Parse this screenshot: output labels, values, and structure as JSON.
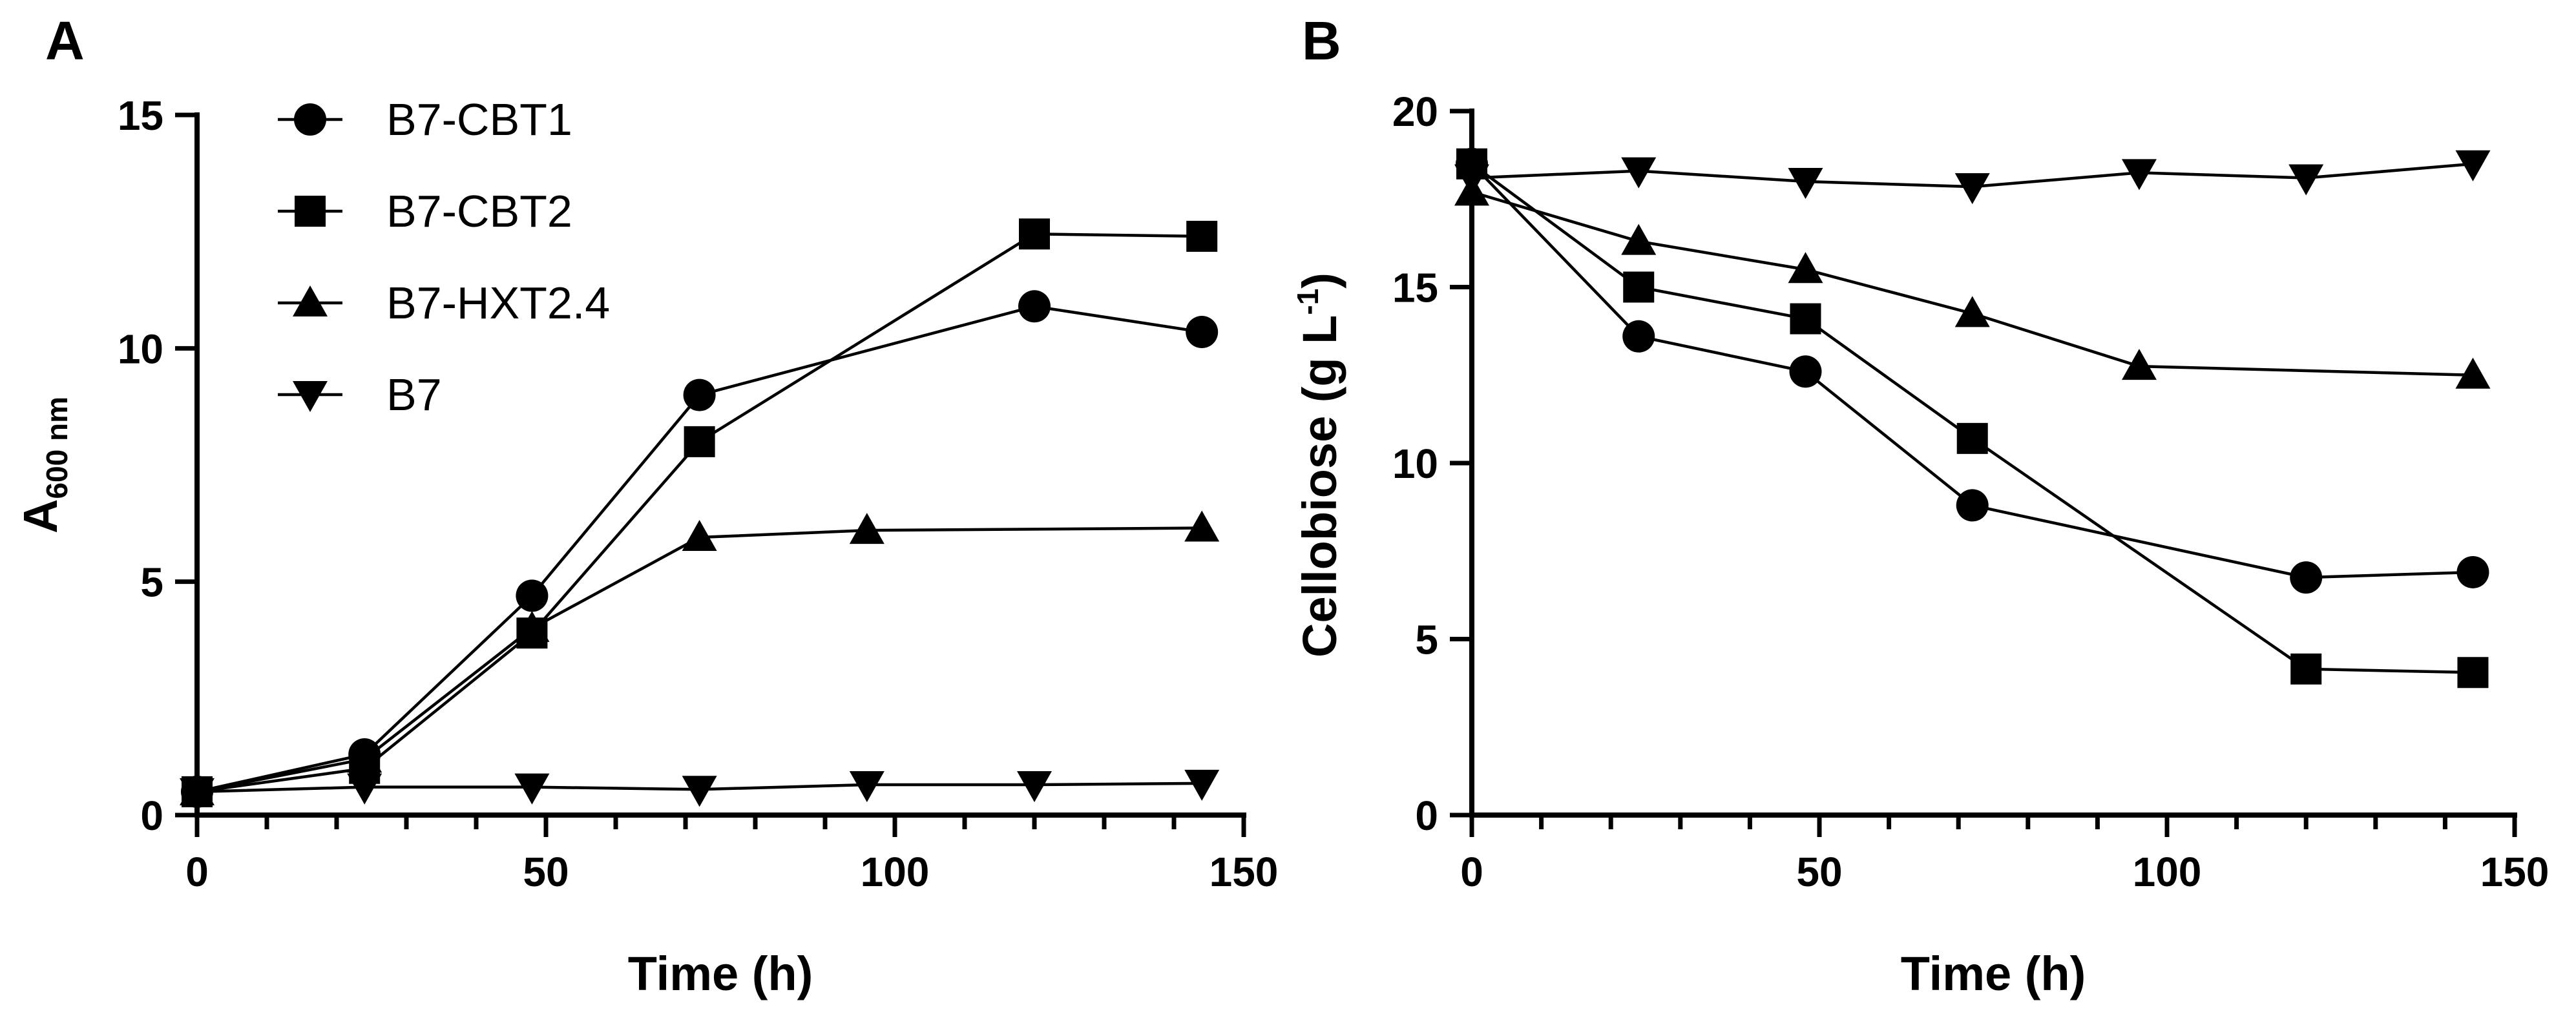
{
  "chart_data": [
    {
      "panel": "A",
      "type": "line",
      "xlabel": "Time (h)",
      "ylabel": {
        "main": "A",
        "subscript": "600 nm"
      },
      "xlim": [
        0,
        150
      ],
      "ylim": [
        0,
        15
      ],
      "xticks": [
        0,
        50,
        100,
        150
      ],
      "yticks": [
        0,
        5,
        10,
        15
      ],
      "legend": "top-left",
      "series": [
        {
          "name": "B7-CBT1",
          "marker": "circle",
          "x": [
            0,
            24,
            48,
            72,
            120,
            144
          ],
          "y": [
            0.5,
            1.3,
            4.7,
            9.0,
            10.9,
            10.35
          ]
        },
        {
          "name": "B7-CBT2",
          "marker": "square",
          "x": [
            0,
            24,
            48,
            72,
            120,
            144
          ],
          "y": [
            0.5,
            1.0,
            3.9,
            8.0,
            12.45,
            12.4
          ]
        },
        {
          "name": "B7-HXT2.4",
          "marker": "triangle-up",
          "x": [
            0,
            24,
            48,
            72,
            96,
            144
          ],
          "y": [
            0.5,
            1.2,
            4.0,
            5.95,
            6.1,
            6.15
          ]
        },
        {
          "name": "B7",
          "marker": "triangle-down",
          "x": [
            0,
            24,
            48,
            72,
            96,
            120,
            144
          ],
          "y": [
            0.5,
            0.6,
            0.6,
            0.55,
            0.65,
            0.65,
            0.68
          ]
        }
      ]
    },
    {
      "panel": "B",
      "type": "line",
      "xlabel": "Time (h)",
      "ylabel": {
        "main": "Cellobiose (g L",
        "superscript": "-1",
        "suffix": ")"
      },
      "xlim": [
        0,
        150
      ],
      "ylim": [
        0,
        20
      ],
      "xticks": [
        0,
        50,
        100,
        150
      ],
      "yticks": [
        0,
        5,
        10,
        15,
        20
      ],
      "series": [
        {
          "name": "B7-CBT1",
          "marker": "circle",
          "x": [
            0,
            24,
            48,
            72,
            120,
            144
          ],
          "y": [
            18.5,
            13.6,
            12.6,
            8.8,
            6.75,
            6.9
          ]
        },
        {
          "name": "B7-CBT2",
          "marker": "square",
          "x": [
            0,
            24,
            48,
            72,
            120,
            144
          ],
          "y": [
            18.5,
            15.0,
            14.1,
            10.7,
            4.15,
            4.05
          ]
        },
        {
          "name": "B7-HXT2.4",
          "marker": "triangle-up",
          "x": [
            0,
            24,
            48,
            72,
            96,
            144
          ],
          "y": [
            17.7,
            16.3,
            15.5,
            14.25,
            12.75,
            12.5
          ]
        },
        {
          "name": "B7",
          "marker": "triangle-down",
          "x": [
            0,
            24,
            48,
            72,
            96,
            120,
            144
          ],
          "y": [
            18.1,
            18.3,
            18.0,
            17.85,
            18.25,
            18.1,
            18.5
          ]
        }
      ]
    }
  ]
}
